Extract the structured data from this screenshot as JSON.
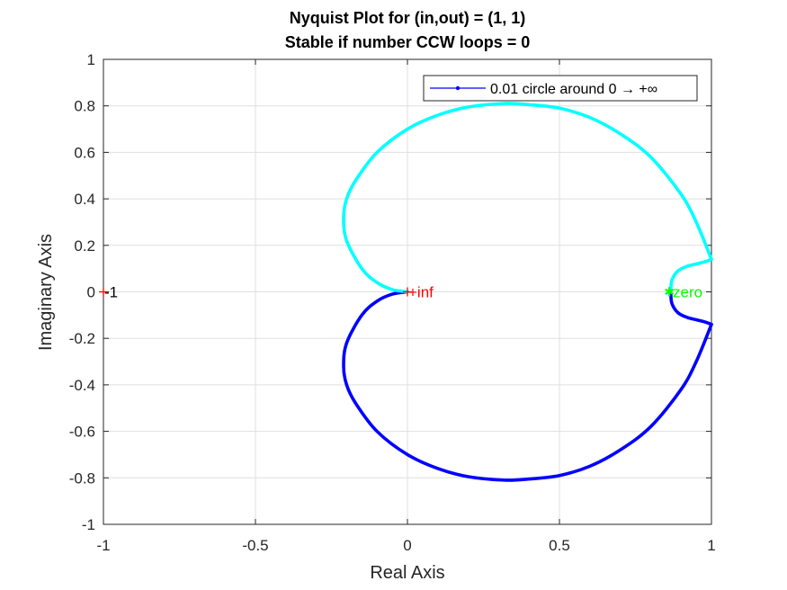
{
  "chart_data": {
    "type": "line",
    "title": [
      "Nyquist Plot for (in,out) = (1, 1)",
      "Stable if number CCW loops = 0"
    ],
    "xlabel": "Real Axis",
    "ylabel": "Imaginary Axis",
    "xlim": [
      -1,
      1
    ],
    "ylim": [
      -1,
      1
    ],
    "xticks": [
      -1,
      -0.5,
      0,
      0.5,
      1
    ],
    "xtick_labels": [
      "-1",
      "-0.5",
      "0",
      "0.5",
      "1"
    ],
    "yticks": [
      -1,
      -0.8,
      -0.6,
      -0.4,
      -0.2,
      0,
      0.2,
      0.4,
      0.6,
      0.8,
      1
    ],
    "ytick_labels": [
      "-1",
      "-0.8",
      "-0.6",
      "-0.4",
      "-0.2",
      "0",
      "0.2",
      "0.4",
      "0.6",
      "0.8",
      "1"
    ],
    "grid": true,
    "legend": {
      "location": "top-right",
      "entries": [
        "0.01 circle around 0 → +∞"
      ]
    },
    "series": [
      {
        "name": "0.01 circle around 0 → +∞",
        "color": "#0000ff",
        "marker": "dot",
        "x": [
          0.866,
          0.87,
          0.89,
          0.92,
          0.95,
          0.98,
          1.0
        ],
        "y": [
          0.0,
          -0.05,
          -0.09,
          -0.11,
          -0.12,
          -0.13,
          -0.14
        ]
      },
      {
        "name": "",
        "color": "#0000ff",
        "x": [
          1.0,
          0.95,
          0.9,
          0.8,
          0.7,
          0.6,
          0.5,
          0.4,
          0.32,
          0.2,
          0.1,
          0.0,
          -0.1,
          -0.17,
          -0.2,
          -0.21,
          -0.2,
          -0.15,
          -0.1,
          -0.05,
          0.0
        ],
        "y": [
          -0.14,
          -0.3,
          -0.42,
          -0.58,
          -0.68,
          -0.75,
          -0.79,
          -0.805,
          -0.81,
          -0.795,
          -0.76,
          -0.7,
          -0.6,
          -0.48,
          -0.4,
          -0.32,
          -0.22,
          -0.1,
          -0.04,
          -0.01,
          0.0
        ]
      },
      {
        "name": "",
        "color": "#00ffff",
        "x": [
          0.0,
          -0.05,
          -0.1,
          -0.15,
          -0.2,
          -0.21,
          -0.2,
          -0.17,
          -0.1,
          0.0,
          0.1,
          0.2,
          0.32,
          0.4,
          0.5,
          0.6,
          0.7,
          0.8,
          0.9,
          0.95,
          1.0
        ],
        "y": [
          0.0,
          0.01,
          0.04,
          0.1,
          0.22,
          0.32,
          0.4,
          0.48,
          0.6,
          0.7,
          0.76,
          0.795,
          0.81,
          0.805,
          0.79,
          0.75,
          0.68,
          0.58,
          0.42,
          0.3,
          0.14
        ]
      },
      {
        "name": "",
        "color": "#00ffff",
        "x": [
          1.0,
          0.98,
          0.95,
          0.92,
          0.89,
          0.87,
          0.866
        ],
        "y": [
          0.14,
          0.13,
          0.12,
          0.11,
          0.09,
          0.05,
          0.0
        ]
      }
    ],
    "annotations": [
      {
        "text": "-1",
        "x": -1,
        "y": 0,
        "color": "#000000",
        "marker": "+",
        "marker_color": "#ff0000"
      },
      {
        "text": "+inf",
        "x": 0,
        "y": 0,
        "color": "#ff0000",
        "marker": "+",
        "marker_color": "#ff0000"
      },
      {
        "text": "zero",
        "x": 0.87,
        "y": 0,
        "color": "#00ff00",
        "marker": "*",
        "marker_color": "#00ff00"
      }
    ]
  }
}
